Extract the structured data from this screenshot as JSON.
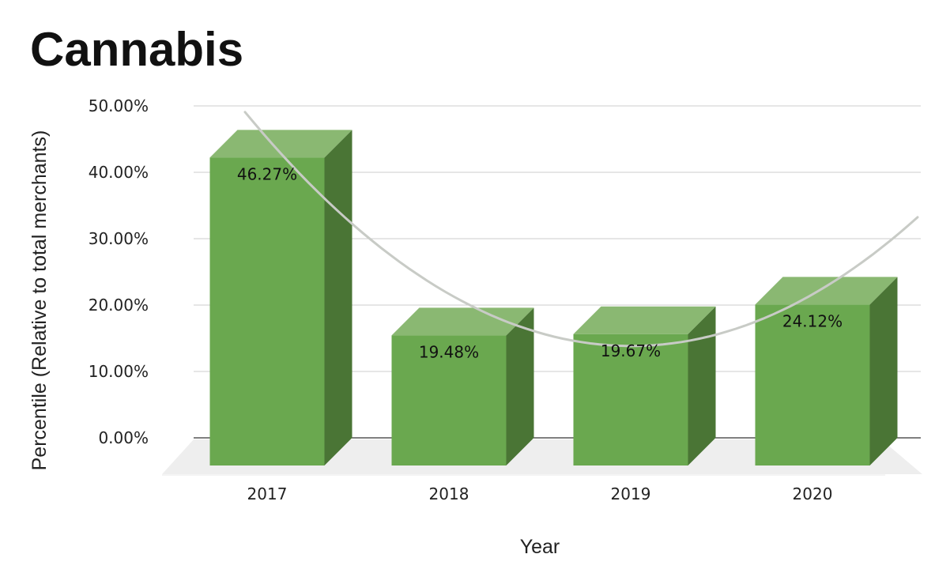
{
  "chart_data": {
    "type": "bar",
    "title": "Cannabis",
    "xlabel": "Year",
    "ylabel": "Percentile (Relative to total merchants)",
    "categories": [
      "2017",
      "2018",
      "2019",
      "2020"
    ],
    "values": [
      46.27,
      19.48,
      19.67,
      24.12
    ],
    "data_labels": [
      "46.27%",
      "19.48%",
      "19.67%",
      "24.12%"
    ],
    "ylim": [
      0,
      50
    ],
    "yticks": [
      0,
      10,
      20,
      30,
      40,
      50
    ],
    "ytick_labels": [
      "0.00%",
      "10.00%",
      "20.00%",
      "30.00%",
      "40.00%",
      "50.00%"
    ],
    "grid": true,
    "legend": "none",
    "style": "3d",
    "trendline": "polynomial",
    "colors": {
      "bar_front": "#6aa84f",
      "bar_top": "#8ab872",
      "bar_side": "#4a7535",
      "floor": "#eeeeee",
      "trendline": "#c8cbc6"
    }
  }
}
